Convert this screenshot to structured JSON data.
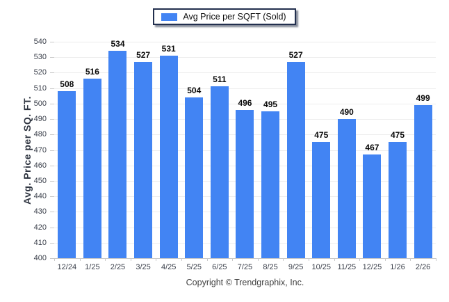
{
  "footer": "Copyright © Trendgraphix, Inc.",
  "colors": {
    "bar": "#4284F3",
    "grid": "#ededed",
    "axis": "#c9c9c9",
    "tick_label": "#3a3f4a",
    "value_label": "#0a0a0a",
    "legend_border": "#222f4e"
  },
  "chart_data": {
    "type": "bar",
    "title": "",
    "legend": [
      "Avg Price per SQFT (Sold)"
    ],
    "legend_position": "top-center",
    "categories": [
      "12/24",
      "1/25",
      "2/25",
      "3/25",
      "4/25",
      "5/25",
      "6/25",
      "7/25",
      "8/25",
      "9/25",
      "10/25",
      "11/25",
      "12/25",
      "1/26",
      "2/26"
    ],
    "values": [
      508,
      516,
      534,
      527,
      531,
      504,
      511,
      496,
      495,
      527,
      475,
      490,
      467,
      475,
      499
    ],
    "bar_labels": true,
    "xlabel": "",
    "ylabel": "Avg. Price per SQ. FT.",
    "ylim": [
      400,
      540
    ],
    "ytick_step": 10,
    "grid": true
  }
}
